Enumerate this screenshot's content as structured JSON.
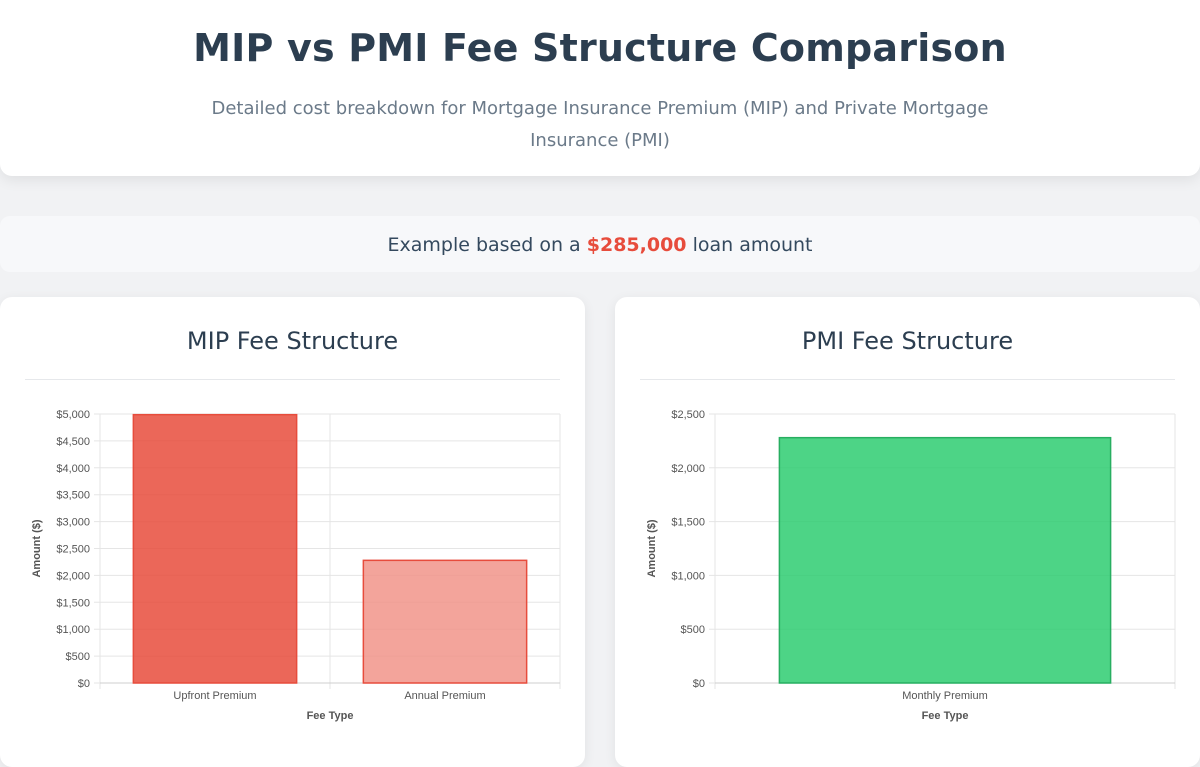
{
  "header": {
    "title": "MIP vs PMI Fee Structure Comparison",
    "subtitle": "Detailed cost breakdown for Mortgage Insurance Premium (MIP) and Private Mortgage Insurance (PMI)"
  },
  "note": {
    "prefix": "Example based on a",
    "amount": "$285,000",
    "suffix": "loan amount",
    "amount_color": "#e74c3c"
  },
  "chart_data": [
    {
      "type": "bar",
      "title": "MIP Fee Structure",
      "categories": [
        "Upfront Premium",
        "Annual Premium"
      ],
      "values": [
        4987.5,
        2280
      ],
      "colors": [
        "#e74c3c",
        "#f1948a"
      ],
      "border_color": "#e74c3c",
      "xlabel": "Fee Type",
      "ylabel": "Amount ($)",
      "ylim": [
        0,
        5000
      ],
      "yticks": [
        "$0",
        "$500",
        "$1,000",
        "$1,500",
        "$2,000",
        "$2,500",
        "$3,000",
        "$3,500",
        "$4,000",
        "$4,500",
        "$5,000"
      ],
      "grid": true
    },
    {
      "type": "bar",
      "title": "PMI Fee Structure",
      "categories": [
        "Monthly Premium"
      ],
      "values": [
        2280
      ],
      "colors": [
        "#2ecc71"
      ],
      "border_color": "#27ae60",
      "xlabel": "Fee Type",
      "ylabel": "Amount ($)",
      "ylim": [
        0,
        2500
      ],
      "yticks": [
        "$0",
        "$500",
        "$1,000",
        "$1,500",
        "$2,000",
        "$2,500"
      ],
      "grid": true
    }
  ]
}
